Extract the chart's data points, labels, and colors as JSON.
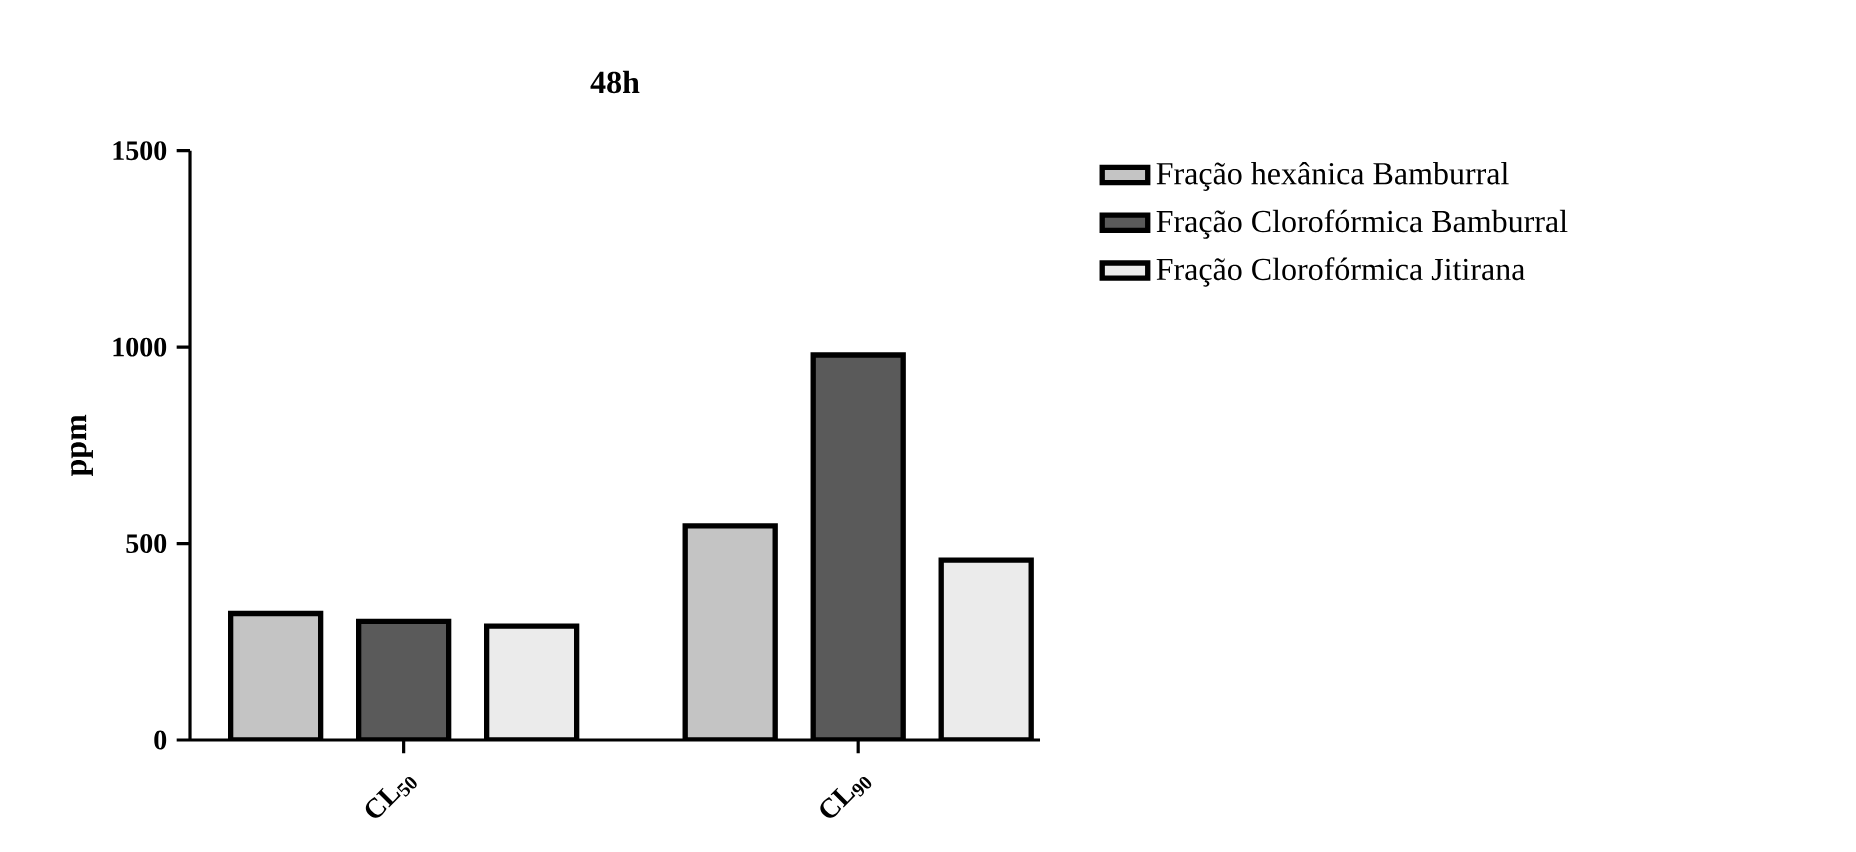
{
  "chart_data": {
    "type": "bar",
    "title": "48h",
    "ylabel": "ppm",
    "categories": [
      "CL$_{50}$",
      "CL$_{90}$"
    ],
    "series": [
      {
        "name": "Fração hexânica Bamburral",
        "color": "#c4c4c4",
        "values": [
          322,
          545
        ]
      },
      {
        "name": "Fração Clorofórmica Bamburral",
        "color": "#5a5a5a",
        "values": [
          302,
          980
        ]
      },
      {
        "name": "Fração Clorofórmica Jitirana",
        "color": "#ebebeb",
        "values": [
          290,
          458
        ]
      }
    ],
    "ylim": [
      0,
      1500
    ],
    "yticks": [
      0,
      500,
      1000,
      1500
    ],
    "legend": "top right"
  }
}
